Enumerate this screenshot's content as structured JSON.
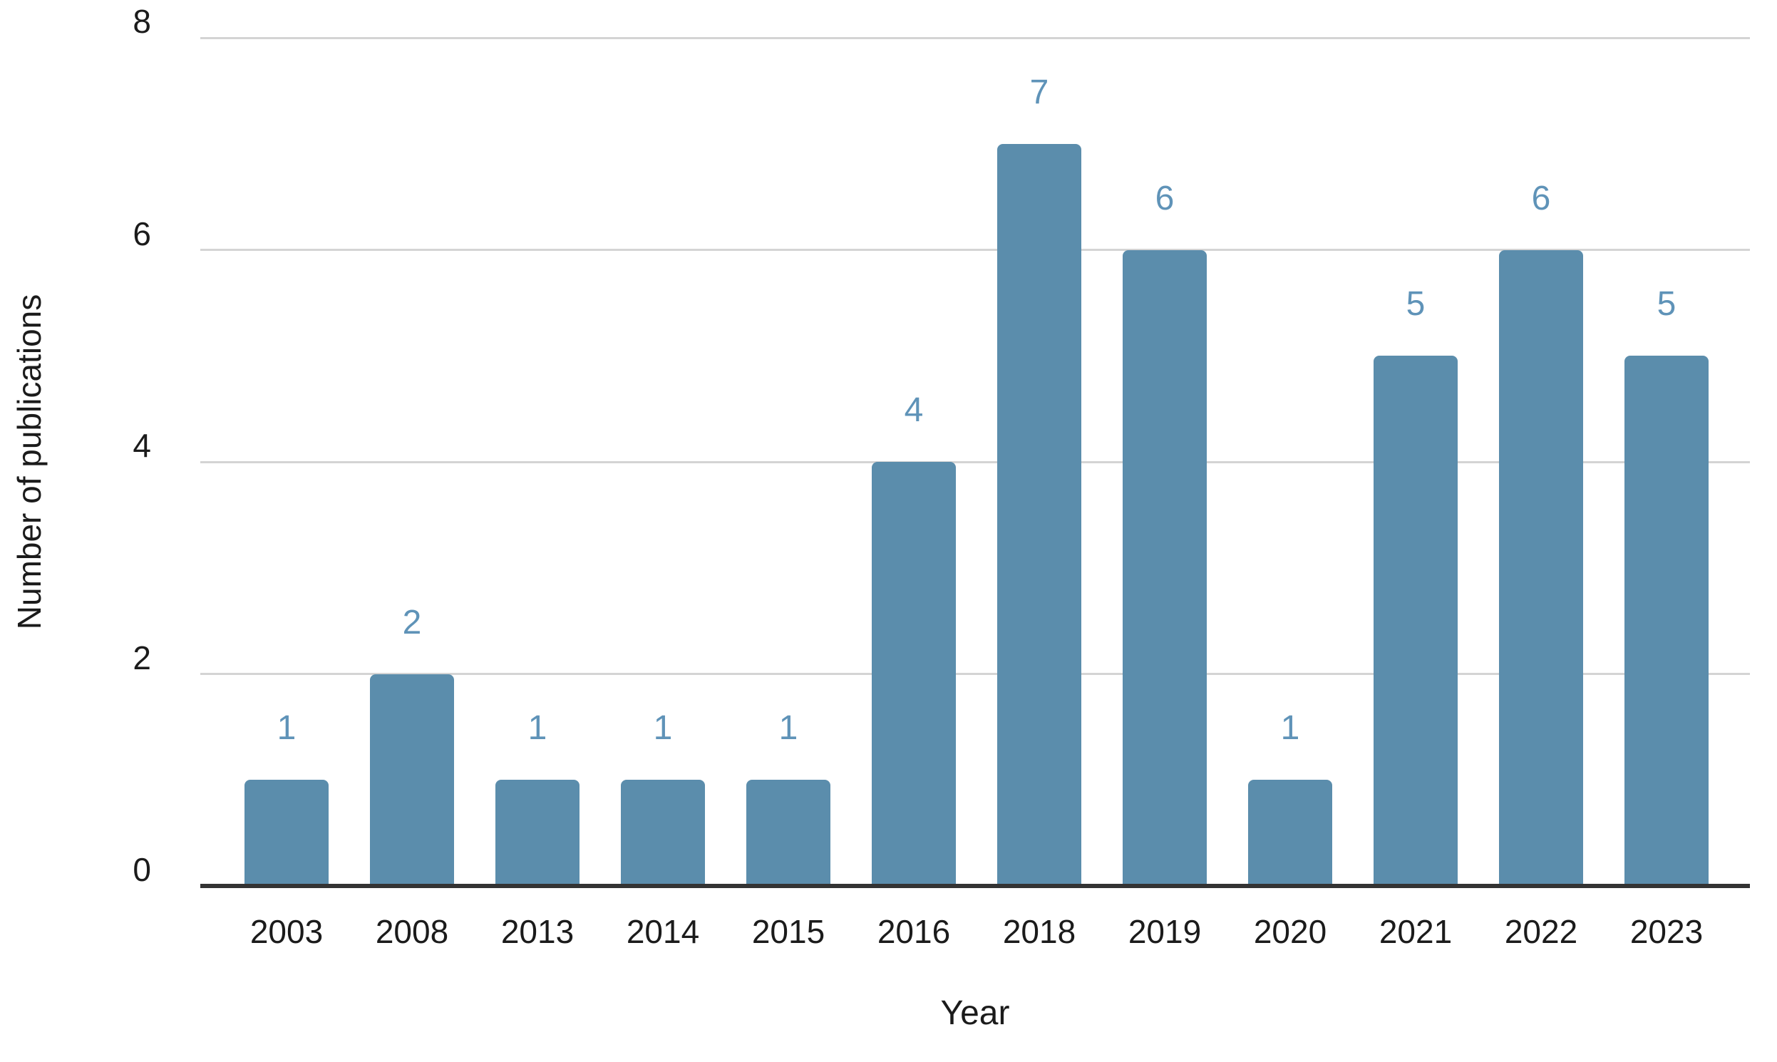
{
  "chart_data": {
    "type": "bar",
    "categories": [
      "2003",
      "2008",
      "2013",
      "2014",
      "2015",
      "2016",
      "2018",
      "2019",
      "2020",
      "2021",
      "2022",
      "2023"
    ],
    "values": [
      1,
      2,
      1,
      1,
      1,
      4,
      7,
      6,
      1,
      5,
      6,
      5
    ],
    "title": "",
    "xlabel": "Year",
    "ylabel": "Number of publications",
    "ylim": [
      0,
      8
    ],
    "yticks": [
      0,
      2,
      4,
      6,
      8
    ],
    "grid": "horizontal",
    "legend": "none",
    "show_value_labels": true,
    "colors": {
      "bar_fill": "#5b8dac",
      "value_label": "#5f93b8",
      "gridline": "#d4d4d4",
      "axis_line": "#333333",
      "tick_text": "#1b1b1b",
      "background": "#ffffff"
    }
  }
}
